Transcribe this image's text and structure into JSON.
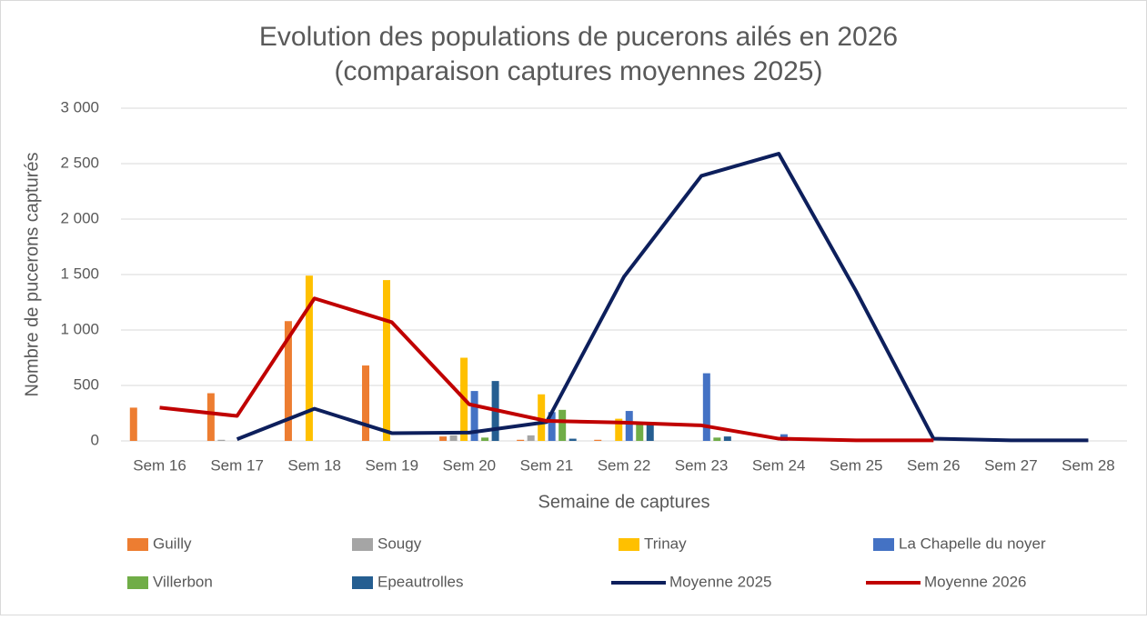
{
  "chart_data": {
    "type": "bar",
    "title": "Evolution des populations de pucerons ailés en 2026",
    "subtitle": "(comparaison captures moyennes 2025)",
    "x_label": "Semaine de captures",
    "y_label": "Nombre de pucerons capturés",
    "categories": [
      "Sem 16",
      "Sem 17",
      "Sem 18",
      "Sem 19",
      "Sem 20",
      "Sem 21",
      "Sem 22",
      "Sem 23",
      "Sem 24",
      "Sem 25",
      "Sem 26",
      "Sem 27",
      "Sem 28"
    ],
    "ylim": [
      0,
      3000
    ],
    "yticks": [
      0,
      500,
      {
        "value": 1000,
        "label": "1 000"
      },
      {
        "value": 1500,
        "label": "1 500"
      },
      {
        "value": 2000,
        "label": "2 000"
      },
      {
        "value": 2500,
        "label": "2 500"
      },
      {
        "value": 3000,
        "label": "3 000"
      }
    ],
    "grid": true,
    "series": [
      {
        "name": "Guilly",
        "color": "#ed7d31",
        "type": "bar",
        "values": [
          300,
          430,
          1080,
          680,
          40,
          10,
          10,
          null,
          null,
          null,
          null,
          null,
          null
        ]
      },
      {
        "name": "Sougy",
        "color": "#a5a5a5",
        "type": "bar",
        "values": [
          null,
          10,
          null,
          null,
          50,
          50,
          null,
          null,
          null,
          null,
          null,
          null,
          null
        ]
      },
      {
        "name": "Trinay",
        "color": "#ffc000",
        "type": "bar",
        "values": [
          null,
          null,
          1490,
          1450,
          750,
          420,
          200,
          null,
          null,
          null,
          null,
          null,
          null
        ]
      },
      {
        "name": "La Chapelle du noyer",
        "color": "#4472c4",
        "type": "bar",
        "values": [
          null,
          null,
          null,
          null,
          450,
          260,
          270,
          610,
          60,
          null,
          null,
          null,
          null
        ]
      },
      {
        "name": "Villerbon",
        "color": "#70ad47",
        "type": "bar",
        "values": [
          null,
          null,
          null,
          null,
          30,
          280,
          160,
          30,
          null,
          null,
          null,
          null,
          null
        ]
      },
      {
        "name": "Epeautrolles",
        "color": "#255e91",
        "type": "bar",
        "values": [
          null,
          null,
          null,
          null,
          540,
          20,
          150,
          40,
          null,
          null,
          null,
          null,
          null
        ]
      },
      {
        "name": "Moyenne 2025",
        "color": "#0d1f5c",
        "type": "line",
        "values": [
          null,
          15,
          290,
          70,
          75,
          170,
          1480,
          2390,
          2590,
          1350,
          20,
          5,
          5
        ]
      },
      {
        "name": "Moyenne 2026",
        "color": "#c00000",
        "type": "line",
        "values": [
          300,
          225,
          1285,
          1070,
          330,
          180,
          165,
          140,
          20,
          5,
          5,
          null,
          null
        ]
      }
    ]
  }
}
